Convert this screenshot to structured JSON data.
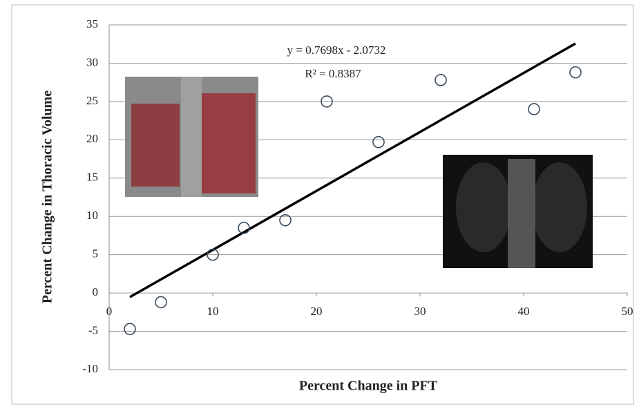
{
  "chart_data": {
    "type": "scatter",
    "x_label": "Percent Change in PFT",
    "y_label": "Percent Change in Thoracic Volume",
    "annotations": [
      "y = 0.7698x - 2.0732",
      "R² = 0.8387"
    ],
    "x": [
      2,
      5,
      10,
      13,
      17,
      21,
      26,
      32,
      41,
      45
    ],
    "series": [
      {
        "color": "#3b4a5a",
        "values": [
          -4.7,
          -1.2,
          5,
          8.5,
          9.5,
          25,
          19.7,
          27.8,
          24,
          28.8
        ]
      }
    ],
    "trendline": {
      "color": "#000000",
      "x": [
        2,
        45
      ],
      "values": [
        -0.5336,
        32.5678
      ]
    },
    "xlim": [
      0,
      50
    ],
    "xticks": [
      0,
      10,
      20,
      30,
      40,
      50
    ],
    "ylim": [
      -10,
      35
    ],
    "yticks": [
      -10,
      -5,
      0,
      5,
      10,
      15,
      20,
      25,
      30,
      35
    ],
    "grid": true
  }
}
